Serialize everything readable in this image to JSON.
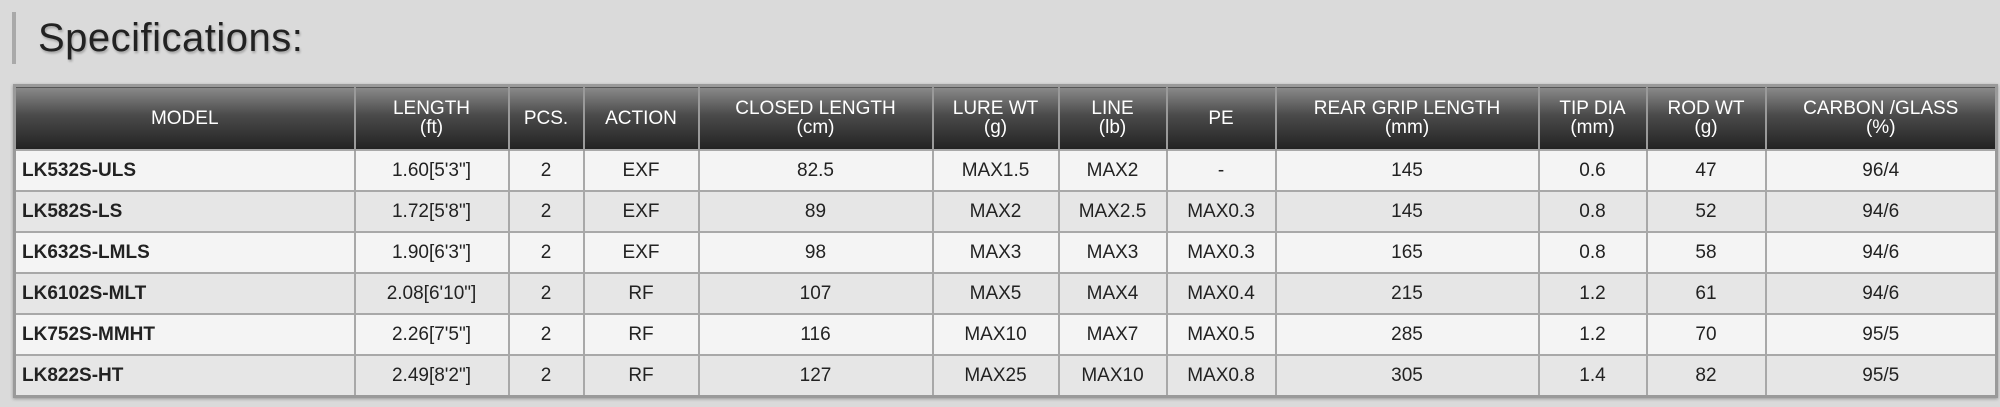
{
  "title": "Specifications:",
  "table": {
    "headers": [
      {
        "label": "MODEL",
        "unit": ""
      },
      {
        "label": "LENGTH",
        "unit": "(ft)"
      },
      {
        "label": "PCS.",
        "unit": ""
      },
      {
        "label": "ACTION",
        "unit": ""
      },
      {
        "label": "CLOSED LENGTH",
        "unit": "(cm)"
      },
      {
        "label": "LURE WT",
        "unit": "(g)"
      },
      {
        "label": "LINE",
        "unit": "(lb)"
      },
      {
        "label": "PE",
        "unit": ""
      },
      {
        "label": "REAR GRIP LENGTH",
        "unit": "(mm)"
      },
      {
        "label": "TIP DIA",
        "unit": "(mm)"
      },
      {
        "label": "ROD WT",
        "unit": "(g)"
      },
      {
        "label": "CARBON /GLASS",
        "unit": "(%)"
      }
    ],
    "rows": [
      [
        "LK532S-ULS",
        "1.60[5'3\"]",
        "2",
        "EXF",
        "82.5",
        "MAX1.5",
        "MAX2",
        "-",
        "145",
        "0.6",
        "47",
        "96/4"
      ],
      [
        "LK582S-LS",
        "1.72[5'8\"]",
        "2",
        "EXF",
        "89",
        "MAX2",
        "MAX2.5",
        "MAX0.3",
        "145",
        "0.8",
        "52",
        "94/6"
      ],
      [
        "LK632S-LMLS",
        "1.90[6'3\"]",
        "2",
        "EXF",
        "98",
        "MAX3",
        "MAX3",
        "MAX0.3",
        "165",
        "0.8",
        "58",
        "94/6"
      ],
      [
        "LK6102S-MLT",
        "2.08[6'10\"]",
        "2",
        "RF",
        "107",
        "MAX5",
        "MAX4",
        "MAX0.4",
        "215",
        "1.2",
        "61",
        "94/6"
      ],
      [
        "LK752S-MMHT",
        "2.26[7'5\"]",
        "2",
        "RF",
        "116",
        "MAX10",
        "MAX7",
        "MAX0.5",
        "285",
        "1.2",
        "70",
        "95/5"
      ],
      [
        "LK822S-HT",
        "2.49[8'2\"]",
        "2",
        "RF",
        "127",
        "MAX25",
        "MAX10",
        "MAX0.8",
        "305",
        "1.4",
        "82",
        "95/5"
      ]
    ]
  }
}
